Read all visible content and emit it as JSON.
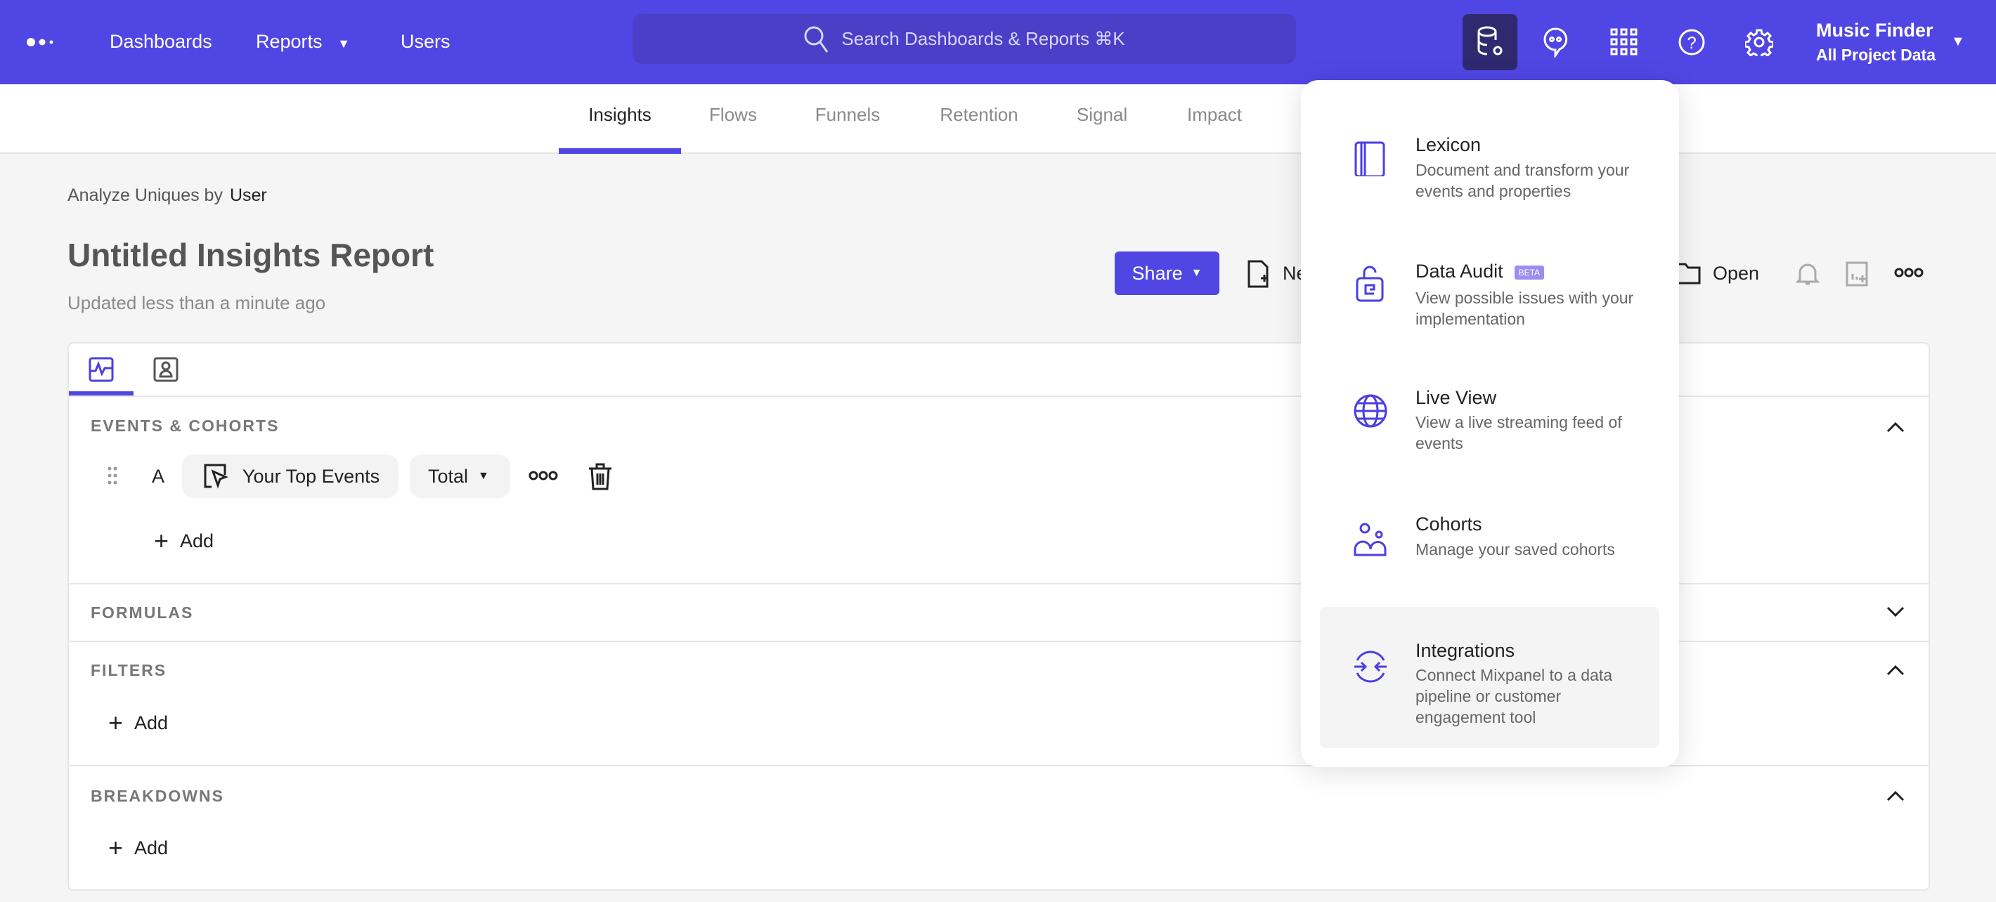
{
  "colors": {
    "brand": "#5046e4",
    "active_nav_button": "#2f2a70",
    "icon_accent": "#4b3fe0"
  },
  "topnav": {
    "logo": "mixpanel-dots-logo",
    "links": [
      "Dashboards",
      "Reports",
      "Users"
    ],
    "search_placeholder": "Search Dashboards & Reports ⌘K",
    "project_name": "Music Finder",
    "project_scope": "All Project Data",
    "icons": [
      "data-management-icon",
      "chat-icon",
      "apps-grid-icon",
      "help-icon",
      "settings-icon"
    ]
  },
  "subnav": {
    "tabs": [
      "Insights",
      "Flows",
      "Funnels",
      "Retention",
      "Signal",
      "Impact"
    ],
    "active": "Insights"
  },
  "report": {
    "analyze_label": "Analyze Uniques by",
    "analyze_value": "User",
    "title": "Untitled Insights Report",
    "updated": "Updated less than a minute ago",
    "share": "Share",
    "new_label": "Ne",
    "open": "Open"
  },
  "builder": {
    "sections": {
      "events": "EVENTS & COHORTS",
      "formulas": "FORMULAS",
      "filters": "FILTERS",
      "breakdowns": "BREAKDOWNS"
    },
    "row_letter": "A",
    "event": "Your Top Events",
    "measure": "Total",
    "add": "Add"
  },
  "dropdown": {
    "items": [
      {
        "title": "Lexicon",
        "desc": "Document and transform your events and properties",
        "icon": "book-icon"
      },
      {
        "title": "Data Audit",
        "badge": "BETA",
        "desc": "View possible issues with your implementation",
        "icon": "lock-audit-icon"
      },
      {
        "title": "Live View",
        "desc": "View a live streaming feed of events",
        "icon": "globe-icon"
      },
      {
        "title": "Cohorts",
        "desc": "Manage your saved cohorts",
        "icon": "users-icon"
      },
      {
        "title": "Integrations",
        "desc": "Connect Mixpanel to a data pipeline or customer engagement tool",
        "icon": "integration-arrows-icon",
        "highlighted": true
      }
    ]
  }
}
